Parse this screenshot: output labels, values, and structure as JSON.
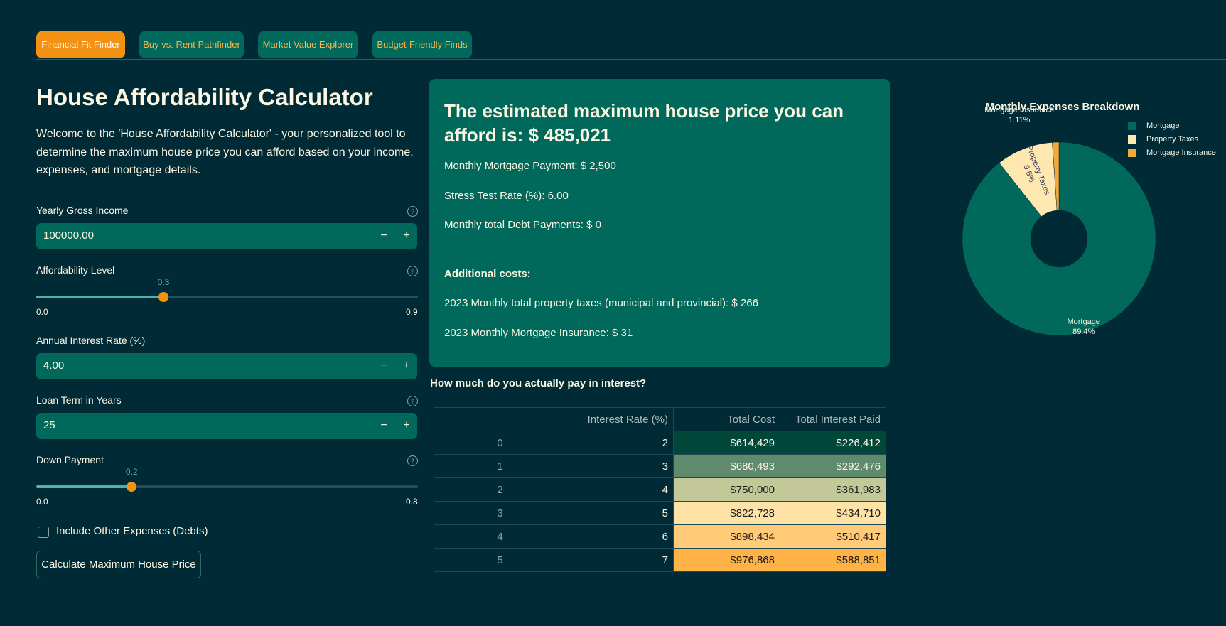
{
  "tabs": [
    {
      "label": "Financial Fit Finder",
      "active": true
    },
    {
      "label": "Buy vs. Rent Pathfinder",
      "active": false
    },
    {
      "label": "Market Value Explorer",
      "active": false
    },
    {
      "label": "Budget-Friendly Finds",
      "active": false
    }
  ],
  "page": {
    "title": "House Affordability Calculator",
    "intro": "Welcome to the 'House Affordability Calculator' - your personalized tool to determine the maximum house price you can afford based on your income, expenses, and mortgage details."
  },
  "form": {
    "income": {
      "label": "Yearly Gross Income",
      "value": "100000.00",
      "minus": "−",
      "plus": "+",
      "help": "?"
    },
    "affordability": {
      "label": "Affordability Level",
      "value": 0.3,
      "min": 0.0,
      "max": 0.9,
      "value_text": "0.3",
      "min_text": "0.0",
      "max_text": "0.9",
      "help": "?"
    },
    "interest": {
      "label": "Annual Interest Rate (%)",
      "value": "4.00",
      "minus": "−",
      "plus": "+"
    },
    "loan_term": {
      "label": "Loan Term in Years",
      "value": "25",
      "minus": "−",
      "plus": "+",
      "help": "?"
    },
    "down_payment": {
      "label": "Down Payment",
      "value": 0.2,
      "min": 0.0,
      "max": 0.8,
      "value_text": "0.2",
      "min_text": "0.0",
      "max_text": "0.8",
      "help": "?"
    },
    "other_expenses": {
      "label": "Include Other Expenses (Debts)",
      "checked": false
    },
    "calculate_label": "Calculate Maximum House Price"
  },
  "result": {
    "headline": "The estimated maximum house price you can afford is: $ 485,021",
    "monthly_payment": "Monthly Mortgage Payment: $ 2,500",
    "stress_rate": "Stress Test Rate (%): 6.00",
    "debt_payments": "Monthly total Debt Payments: $ 0",
    "additional_heading": "Additional costs:",
    "property_taxes": "2023 Monthly total property taxes (municipal and provincial): $ 266",
    "mortgage_insurance": "2023 Monthly Mortgage Insurance: $ 31"
  },
  "interest_table": {
    "title": "How much do you actually pay in interest?",
    "headers": [
      "",
      "Interest Rate (%)",
      "Total Cost",
      "Total Interest Paid"
    ],
    "rows": [
      {
        "index": "0",
        "rate": "2",
        "cost": "$614,429",
        "interest": "$226,412",
        "color": "#00473a",
        "text": "#fdf6e3"
      },
      {
        "index": "1",
        "rate": "3",
        "cost": "$680,493",
        "interest": "$292,476",
        "color": "#5f8a6b",
        "text": "#fdf6e3"
      },
      {
        "index": "2",
        "rate": "4",
        "cost": "$750,000",
        "interest": "$361,983",
        "color": "#c2c898",
        "text": "#1a1a1a"
      },
      {
        "index": "3",
        "rate": "5",
        "cost": "$822,728",
        "interest": "$434,710",
        "color": "#ffe3a6",
        "text": "#1a1a1a"
      },
      {
        "index": "4",
        "rate": "6",
        "cost": "$898,434",
        "interest": "$510,417",
        "color": "#ffcb78",
        "text": "#1a1a1a"
      },
      {
        "index": "5",
        "rate": "7",
        "cost": "$976,868",
        "interest": "$588,851",
        "color": "#ffb347",
        "text": "#1a1a1a"
      }
    ]
  },
  "chart_data": {
    "type": "pie",
    "title": "Monthly Expenses Breakdown",
    "hole": true,
    "legend_position": "top-right",
    "slices": [
      {
        "name": "Mortgage",
        "value": 89.4,
        "label": "Mortgage",
        "pct": "89.4%",
        "color": "#00695c"
      },
      {
        "name": "Property Taxes",
        "value": 9.5,
        "label": "Property Taxes",
        "pct": "9.5%",
        "color": "#ffe8b0"
      },
      {
        "name": "Mortgage Insurance",
        "value": 1.11,
        "label": "Mortgage Insurance",
        "pct": "1.11%",
        "color": "#f5a83a"
      }
    ]
  }
}
